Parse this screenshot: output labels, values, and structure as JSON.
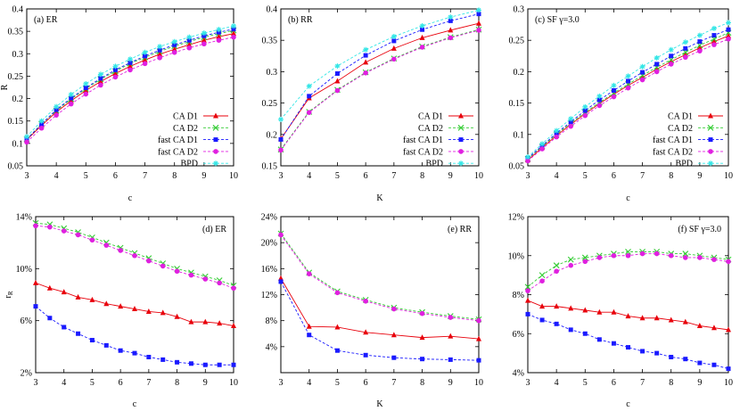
{
  "figure": {
    "colors": {
      "CA D1": "#e8000b",
      "CA D2": "#33cc33",
      "fast CA D1": "#1a1aff",
      "fast CA D2": "#e020e0",
      "BPD": "#33e6e6"
    },
    "markers": {
      "CA D1": "triangle",
      "CA D2": "cross",
      "fast CA D1": "square",
      "fast CA D2": "circle",
      "BPD": "star"
    }
  },
  "chart_data": [
    {
      "id": "a",
      "type": "line",
      "title": "(a) ER",
      "xlabel": "c",
      "ylabel": "R",
      "xlim": [
        3,
        10
      ],
      "ylim": [
        0.05,
        0.4
      ],
      "xticks": [
        3,
        4,
        5,
        6,
        7,
        8,
        9,
        10
      ],
      "yticks": [
        0.05,
        0.1,
        0.15,
        0.2,
        0.25,
        0.3,
        0.35,
        0.4
      ],
      "ytick_labels": [
        "0.05",
        "0.1",
        "0.15",
        "0.2",
        "0.25",
        "0.3",
        "0.35",
        "0.4"
      ],
      "legend": "right",
      "x": [
        3,
        3.5,
        4,
        4.5,
        5,
        5.5,
        6,
        6.5,
        7,
        7.5,
        8,
        8.5,
        9,
        9.5,
        10
      ],
      "series": [
        {
          "name": "CA D1",
          "values": [
            0.108,
            0.14,
            0.17,
            0.195,
            0.218,
            0.238,
            0.256,
            0.272,
            0.286,
            0.299,
            0.31,
            0.32,
            0.33,
            0.338,
            0.345
          ]
        },
        {
          "name": "CA D2",
          "values": [
            0.11,
            0.143,
            0.173,
            0.199,
            0.222,
            0.243,
            0.261,
            0.278,
            0.292,
            0.305,
            0.317,
            0.327,
            0.337,
            0.345,
            0.352
          ]
        },
        {
          "name": "fast CA D1",
          "values": [
            0.109,
            0.143,
            0.175,
            0.201,
            0.224,
            0.245,
            0.264,
            0.28,
            0.295,
            0.308,
            0.32,
            0.33,
            0.34,
            0.348,
            0.355
          ]
        },
        {
          "name": "fast CA D2",
          "values": [
            0.103,
            0.134,
            0.163,
            0.188,
            0.21,
            0.23,
            0.248,
            0.264,
            0.278,
            0.291,
            0.303,
            0.313,
            0.322,
            0.33,
            0.337
          ]
        },
        {
          "name": "BPD",
          "values": [
            0.115,
            0.15,
            0.182,
            0.209,
            0.233,
            0.254,
            0.272,
            0.288,
            0.303,
            0.316,
            0.327,
            0.337,
            0.346,
            0.354,
            0.362
          ]
        }
      ]
    },
    {
      "id": "b",
      "type": "line",
      "title": "(b) RR",
      "xlabel": "K",
      "ylabel": "",
      "xlim": [
        3,
        10
      ],
      "ylim": [
        0.15,
        0.4
      ],
      "xticks": [
        3,
        4,
        5,
        6,
        7,
        8,
        9,
        10
      ],
      "yticks": [
        0.15,
        0.2,
        0.25,
        0.3,
        0.35,
        0.4
      ],
      "ytick_labels": [
        "0.15",
        "0.2",
        "0.25",
        "0.3",
        "0.35",
        "0.4"
      ],
      "legend": "right",
      "x": [
        3,
        4,
        5,
        6,
        7,
        8,
        9,
        10
      ],
      "series": [
        {
          "name": "CA D1",
          "values": [
            0.193,
            0.258,
            0.285,
            0.315,
            0.337,
            0.354,
            0.366,
            0.377
          ]
        },
        {
          "name": "CA D2",
          "values": [
            0.176,
            0.236,
            0.271,
            0.299,
            0.321,
            0.34,
            0.355,
            0.367
          ]
        },
        {
          "name": "fast CA D1",
          "values": [
            0.192,
            0.261,
            0.297,
            0.326,
            0.349,
            0.367,
            0.381,
            0.392
          ]
        },
        {
          "name": "fast CA D2",
          "values": [
            0.175,
            0.235,
            0.27,
            0.298,
            0.32,
            0.339,
            0.354,
            0.366
          ]
        },
        {
          "name": "BPD",
          "values": [
            0.224,
            0.277,
            0.309,
            0.335,
            0.356,
            0.373,
            0.387,
            0.398
          ]
        }
      ]
    },
    {
      "id": "c",
      "type": "line",
      "title": "(c) SF γ=3.0",
      "xlabel": "c",
      "ylabel": "",
      "xlim": [
        3,
        10
      ],
      "ylim": [
        0.05,
        0.3
      ],
      "xticks": [
        3,
        4,
        5,
        6,
        7,
        8,
        9,
        10
      ],
      "yticks": [
        0.05,
        0.1,
        0.15,
        0.2,
        0.25,
        0.3
      ],
      "ytick_labels": [
        "0.05",
        "0.1",
        "0.15",
        "0.2",
        "0.25",
        "0.3"
      ],
      "legend": "right",
      "x": [
        3,
        3.5,
        4,
        4.5,
        5,
        5.5,
        6,
        6.5,
        7,
        7.5,
        8,
        8.5,
        9,
        9.5,
        10
      ],
      "series": [
        {
          "name": "CA D1",
          "values": [
            0.059,
            0.079,
            0.098,
            0.116,
            0.133,
            0.149,
            0.164,
            0.178,
            0.191,
            0.204,
            0.216,
            0.227,
            0.238,
            0.248,
            0.257
          ]
        },
        {
          "name": "CA D2",
          "values": [
            0.061,
            0.081,
            0.1,
            0.118,
            0.135,
            0.151,
            0.166,
            0.18,
            0.194,
            0.207,
            0.219,
            0.231,
            0.242,
            0.252,
            0.262
          ]
        },
        {
          "name": "fast CA D1",
          "values": [
            0.062,
            0.082,
            0.102,
            0.12,
            0.138,
            0.155,
            0.17,
            0.185,
            0.199,
            0.212,
            0.225,
            0.237,
            0.248,
            0.258,
            0.267
          ]
        },
        {
          "name": "fast CA D2",
          "values": [
            0.058,
            0.077,
            0.096,
            0.113,
            0.13,
            0.146,
            0.16,
            0.174,
            0.187,
            0.2,
            0.212,
            0.223,
            0.233,
            0.243,
            0.252
          ]
        },
        {
          "name": "BPD",
          "values": [
            0.064,
            0.085,
            0.106,
            0.125,
            0.144,
            0.161,
            0.178,
            0.193,
            0.208,
            0.222,
            0.235,
            0.247,
            0.258,
            0.269,
            0.278
          ]
        }
      ]
    },
    {
      "id": "d",
      "type": "line",
      "title": "(d) ER",
      "xlabel": "c",
      "ylabel": "r_R",
      "xlim": [
        3,
        10
      ],
      "ylim": [
        0.02,
        0.14
      ],
      "xticks": [
        3,
        4,
        5,
        6,
        7,
        8,
        9,
        10
      ],
      "yticks": [
        0.02,
        0.06,
        0.1,
        0.14
      ],
      "ytick_labels": [
        "2%",
        "6%",
        "10%",
        "14%"
      ],
      "legend": "none",
      "x": [
        3,
        3.5,
        4,
        4.5,
        5,
        5.5,
        6,
        6.5,
        7,
        7.5,
        8,
        8.5,
        9,
        9.5,
        10
      ],
      "series": [
        {
          "name": "CA D1",
          "values": [
            0.089,
            0.085,
            0.082,
            0.078,
            0.076,
            0.073,
            0.071,
            0.069,
            0.067,
            0.066,
            0.063,
            0.059,
            0.059,
            0.058,
            0.056
          ]
        },
        {
          "name": "CA D2",
          "values": [
            0.135,
            0.134,
            0.131,
            0.128,
            0.124,
            0.12,
            0.116,
            0.112,
            0.108,
            0.104,
            0.1,
            0.097,
            0.094,
            0.091,
            0.087
          ]
        },
        {
          "name": "fast CA D1",
          "values": [
            0.071,
            0.062,
            0.055,
            0.05,
            0.045,
            0.041,
            0.037,
            0.035,
            0.032,
            0.03,
            0.028,
            0.027,
            0.026,
            0.026,
            0.026
          ]
        },
        {
          "name": "fast CA D2",
          "values": [
            0.133,
            0.132,
            0.129,
            0.126,
            0.122,
            0.118,
            0.114,
            0.11,
            0.106,
            0.102,
            0.098,
            0.095,
            0.092,
            0.089,
            0.085
          ]
        }
      ]
    },
    {
      "id": "e",
      "type": "line",
      "title": "(e) RR",
      "xlabel": "K",
      "ylabel": "",
      "xlim": [
        3,
        10
      ],
      "ylim": [
        0.0,
        0.24
      ],
      "xticks": [
        3,
        4,
        5,
        6,
        7,
        8,
        9,
        10
      ],
      "yticks": [
        0.04,
        0.08,
        0.12,
        0.16,
        0.2,
        0.24
      ],
      "ytick_labels": [
        "4%",
        "8%",
        "12%",
        "16%",
        "20%",
        "24%"
      ],
      "legend": "none",
      "x": [
        3,
        4,
        5,
        6,
        7,
        8,
        9,
        10
      ],
      "series": [
        {
          "name": "CA D1",
          "values": [
            0.145,
            0.071,
            0.07,
            0.062,
            0.058,
            0.054,
            0.056,
            0.052
          ]
        },
        {
          "name": "CA D2",
          "values": [
            0.214,
            0.154,
            0.125,
            0.112,
            0.1,
            0.093,
            0.087,
            0.082
          ]
        },
        {
          "name": "fast CA D1",
          "values": [
            0.14,
            0.058,
            0.034,
            0.027,
            0.023,
            0.021,
            0.02,
            0.019
          ]
        },
        {
          "name": "fast CA D2",
          "values": [
            0.212,
            0.152,
            0.123,
            0.11,
            0.098,
            0.091,
            0.085,
            0.08
          ]
        }
      ]
    },
    {
      "id": "f",
      "type": "line",
      "title": "(f) SF γ=3.0",
      "xlabel": "c",
      "ylabel": "",
      "xlim": [
        3,
        10
      ],
      "ylim": [
        0.04,
        0.12
      ],
      "xticks": [
        3,
        4,
        5,
        6,
        7,
        8,
        9,
        10
      ],
      "yticks": [
        0.04,
        0.06,
        0.08,
        0.1,
        0.12
      ],
      "ytick_labels": [
        "4%",
        "6%",
        "8%",
        "10%",
        "12%"
      ],
      "legend": "none",
      "x": [
        3,
        3.5,
        4,
        4.5,
        5,
        5.5,
        6,
        6.5,
        7,
        7.5,
        8,
        8.5,
        9,
        9.5,
        10
      ],
      "series": [
        {
          "name": "CA D1",
          "values": [
            0.077,
            0.074,
            0.074,
            0.073,
            0.072,
            0.071,
            0.071,
            0.069,
            0.068,
            0.068,
            0.067,
            0.066,
            0.064,
            0.063,
            0.062
          ]
        },
        {
          "name": "CA D2",
          "values": [
            0.084,
            0.09,
            0.095,
            0.098,
            0.099,
            0.1,
            0.101,
            0.102,
            0.102,
            0.102,
            0.101,
            0.101,
            0.1,
            0.099,
            0.098
          ]
        },
        {
          "name": "fast CA D1",
          "values": [
            0.07,
            0.067,
            0.065,
            0.062,
            0.06,
            0.057,
            0.055,
            0.053,
            0.051,
            0.05,
            0.048,
            0.047,
            0.045,
            0.044,
            0.042
          ]
        },
        {
          "name": "fast CA D2",
          "values": [
            0.082,
            0.087,
            0.092,
            0.095,
            0.097,
            0.099,
            0.1,
            0.1,
            0.101,
            0.101,
            0.1,
            0.099,
            0.099,
            0.098,
            0.097
          ]
        }
      ]
    }
  ]
}
